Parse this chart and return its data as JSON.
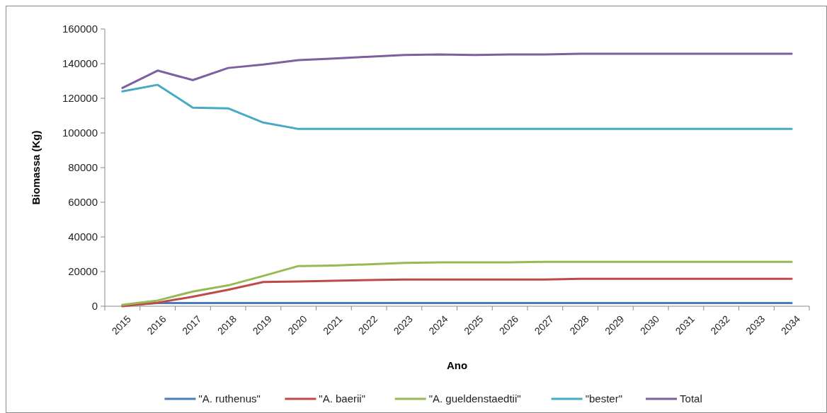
{
  "chart_data": {
    "type": "line",
    "xlabel": "Ano",
    "ylabel": "Biomassa (Kg)",
    "categories": [
      "2015",
      "2016",
      "2017",
      "2018",
      "2019",
      "2020",
      "2021",
      "2022",
      "2023",
      "2024",
      "2025",
      "2026",
      "2027",
      "2028",
      "2029",
      "2030",
      "2031",
      "2032",
      "2033",
      "2034"
    ],
    "series": [
      {
        "name": "\"A. ruthenus\"",
        "color": "#4a7ebb",
        "values": [
          500,
          1800,
          1800,
          1800,
          1800,
          1800,
          1800,
          1800,
          1800,
          1800,
          1800,
          1800,
          1800,
          1800,
          1800,
          1800,
          1800,
          1800,
          1800,
          1800
        ]
      },
      {
        "name": "\"A. baerii\"",
        "color": "#be4b48",
        "values": [
          0,
          2000,
          5500,
          9500,
          14000,
          14300,
          14700,
          15100,
          15400,
          15400,
          15400,
          15400,
          15400,
          15800,
          15800,
          15800,
          15800,
          15800,
          15800,
          15800
        ]
      },
      {
        "name": "\"A. gueldenstaedtii\"",
        "color": "#98b954",
        "values": [
          800,
          3300,
          8500,
          12000,
          17500,
          23200,
          23500,
          24200,
          25000,
          25300,
          25300,
          25300,
          25600,
          25600,
          25600,
          25600,
          25600,
          25600,
          25600,
          25600
        ]
      },
      {
        "name": "\"bester\"",
        "color": "#46aac5",
        "values": [
          124000,
          127800,
          114600,
          114200,
          106000,
          102300,
          102300,
          102300,
          102300,
          102300,
          102300,
          102300,
          102300,
          102300,
          102300,
          102300,
          102300,
          102300,
          102300,
          102300
        ]
      },
      {
        "name": "Total",
        "color": "#7d60a0",
        "values": [
          126000,
          136000,
          130500,
          137500,
          139500,
          142000,
          143000,
          144000,
          145000,
          145300,
          145000,
          145300,
          145300,
          145700,
          145700,
          145700,
          145700,
          145700,
          145700,
          145700
        ]
      }
    ],
    "ylim": [
      0,
      160000
    ],
    "yticks": [
      0,
      20000,
      40000,
      60000,
      80000,
      100000,
      120000,
      140000,
      160000
    ],
    "grid": false,
    "legend": "bottom",
    "marker": "none",
    "line_style": "solid"
  }
}
